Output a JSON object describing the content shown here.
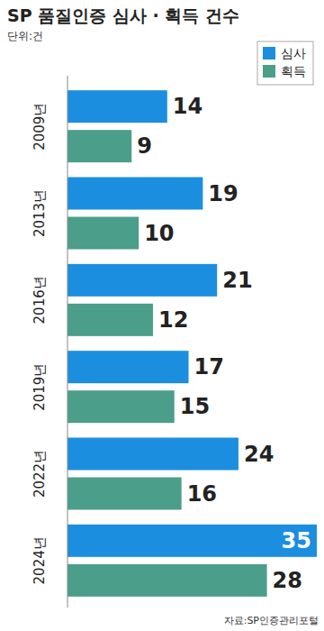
{
  "chart_data": {
    "type": "bar",
    "orientation": "horizontal",
    "title": "SP 품질인증 심사 · 획득 건수",
    "subtitle": "단위:건",
    "annotations": [
      "자료:SP인증관리포털"
    ],
    "categories": [
      "2009년",
      "2013년",
      "2016년",
      "2019년",
      "2022년",
      "2024년"
    ],
    "series": [
      {
        "name": "심사",
        "color": "#1b8ee0",
        "values": [
          14,
          19,
          21,
          17,
          24,
          35
        ]
      },
      {
        "name": "획득",
        "color": "#4b9e89",
        "values": [
          9,
          10,
          12,
          15,
          16,
          28
        ]
      }
    ],
    "xlim": [
      0,
      35
    ],
    "data_labels": true,
    "tick_labels": "y",
    "legend": "upper right",
    "grid": false
  }
}
